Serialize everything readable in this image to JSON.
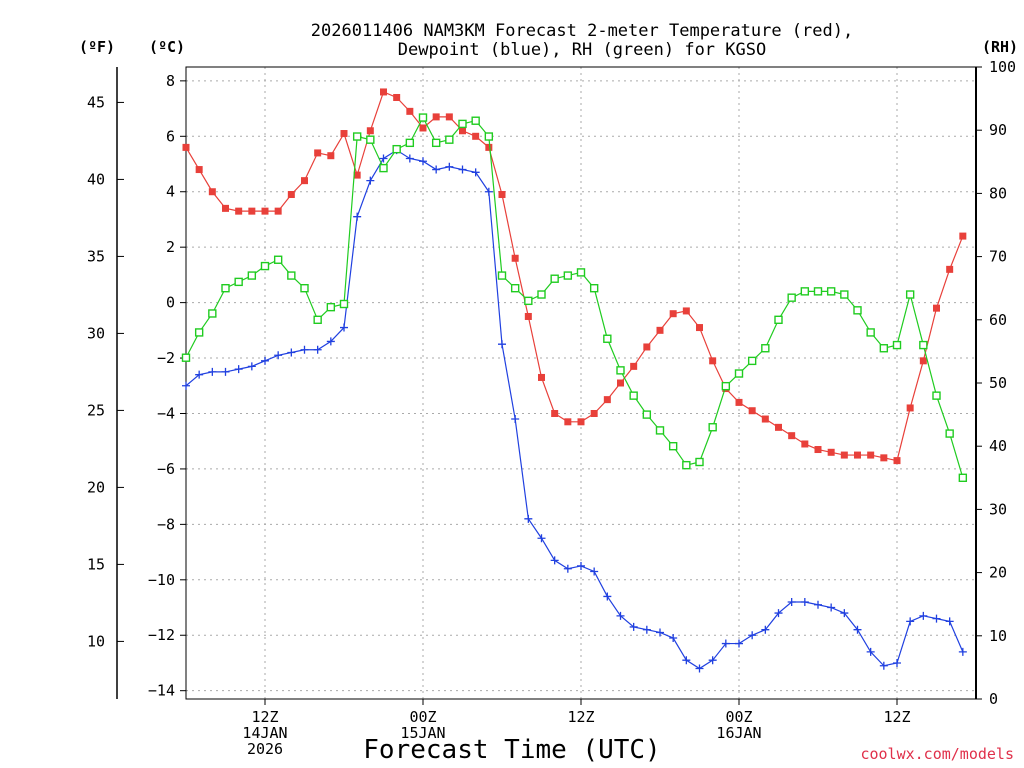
{
  "chart_data": {
    "type": "line",
    "title": [
      "2026011406 NAM3KM Forecast 2-meter Temperature (red),",
      "Dewpoint (blue), RH (green) for KGSO"
    ],
    "xlabel": "Forecast Time (UTC)",
    "credit": "coolwx.com/models",
    "units": {
      "fahrenheit": "(ºF)",
      "celsius": "(ºC)",
      "rh": "(RH)"
    },
    "x_range_hours": [
      0,
      60
    ],
    "x_ticks": [
      {
        "hour": 6,
        "lines": [
          "12Z",
          "14JAN",
          "2026"
        ]
      },
      {
        "hour": 18,
        "lines": [
          "00Z",
          "15JAN"
        ]
      },
      {
        "hour": 30,
        "lines": [
          "12Z"
        ]
      },
      {
        "hour": 42,
        "lines": [
          "00Z",
          "16JAN"
        ]
      },
      {
        "hour": 54,
        "lines": [
          "12Z"
        ]
      }
    ],
    "celsius_range": [
      -14.3,
      8.5
    ],
    "celsius_ticks": [
      8,
      6,
      4,
      2,
      0,
      -2,
      -4,
      -6,
      -8,
      -10,
      -12,
      -14
    ],
    "fahrenheit_ticks": [
      45,
      40,
      35,
      30,
      25,
      20,
      15,
      10
    ],
    "rh_range": [
      0,
      100
    ],
    "rh_ticks": [
      100,
      90,
      80,
      70,
      60,
      50,
      40,
      30,
      20,
      10,
      0
    ],
    "series": [
      {
        "name": "2-meter Temperature",
        "unit": "C",
        "color": "#e8403a",
        "marker": "filled-square",
        "values": [
          5.6,
          4.8,
          4.0,
          3.4,
          3.3,
          3.3,
          3.3,
          3.3,
          3.9,
          4.4,
          5.4,
          5.3,
          6.1,
          4.6,
          6.2,
          7.6,
          7.4,
          6.9,
          6.3,
          6.7,
          6.7,
          6.2,
          6.0,
          5.6,
          3.9,
          1.6,
          -0.5,
          -2.7,
          -4.0,
          -4.3,
          -4.3,
          -4.0,
          -3.5,
          -2.9,
          -2.3,
          -1.6,
          -1.0,
          -0.4,
          -0.3,
          -0.9,
          -2.1,
          -3.1,
          -3.6,
          -3.9,
          -4.2,
          -4.5,
          -4.8,
          -5.1,
          -5.3,
          -5.4,
          -5.5,
          -5.5,
          -5.5,
          -5.6,
          -5.7,
          -3.8,
          -2.1,
          -0.2,
          1.2,
          2.4
        ]
      },
      {
        "name": "Dewpoint",
        "unit": "C",
        "color": "#2040e0",
        "marker": "plus",
        "values": [
          -3.0,
          -2.6,
          -2.5,
          -2.5,
          -2.4,
          -2.3,
          -2.1,
          -1.9,
          -1.8,
          -1.7,
          -1.7,
          -1.4,
          -0.9,
          3.1,
          4.4,
          5.2,
          5.5,
          5.2,
          5.1,
          4.8,
          4.9,
          4.8,
          4.7,
          4.0,
          -1.5,
          -4.2,
          -7.8,
          -8.5,
          -9.3,
          -9.6,
          -9.5,
          -9.7,
          -10.6,
          -11.3,
          -11.7,
          -11.8,
          -11.9,
          -12.1,
          -12.9,
          -13.2,
          -12.9,
          -12.3,
          -12.3,
          -12.0,
          -11.8,
          -11.2,
          -10.8,
          -10.8,
          -10.9,
          -11.0,
          -11.2,
          -11.8,
          -12.6,
          -13.1,
          -13.0,
          -11.5,
          -11.3,
          -11.4,
          -11.5,
          -12.6
        ]
      },
      {
        "name": "RH",
        "unit": "%",
        "color": "#20cc20",
        "marker": "open-square",
        "values": [
          54.0,
          58.0,
          61.0,
          65.0,
          66.0,
          67.0,
          68.5,
          69.5,
          67.0,
          65.0,
          60.0,
          62.0,
          62.5,
          89.0,
          88.5,
          84.0,
          87.0,
          88.0,
          92.0,
          88.0,
          88.5,
          91.0,
          91.5,
          89.0,
          67.0,
          65.0,
          63.0,
          64.0,
          66.5,
          67.0,
          67.5,
          65.0,
          57.0,
          52.0,
          48.0,
          45.0,
          42.5,
          40.0,
          37.0,
          37.5,
          43.0,
          49.5,
          51.5,
          53.5,
          55.5,
          60.0,
          63.5,
          64.5,
          64.5,
          64.5,
          64.0,
          61.5,
          58.0,
          55.5,
          56.0,
          64.0,
          56.0,
          48.0,
          42.0,
          35.0
        ]
      }
    ]
  }
}
